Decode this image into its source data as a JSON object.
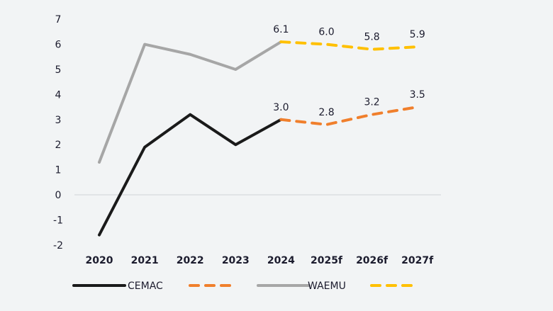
{
  "chart_data": {
    "type": "line",
    "title": "",
    "xlabel": "",
    "ylabel": "",
    "categories": [
      "2020",
      "2021",
      "2022",
      "2023",
      "2024",
      "2025f",
      "2026f",
      "2027f"
    ],
    "ylim": [
      -2,
      7
    ],
    "yticks": [
      "-2",
      "-1",
      "0",
      "1",
      "2",
      "3",
      "4",
      "5",
      "6",
      "7"
    ],
    "grid": false,
    "zero_line": true,
    "legend_position": "bottom",
    "forecast_from": "2024",
    "series": [
      {
        "name": "CEMAC",
        "values": [
          -1.6,
          1.9,
          3.2,
          2.0,
          3.0,
          2.8,
          3.2,
          3.5
        ],
        "color": "#1a1a1a",
        "forecast_color": "#f07f2c",
        "data_labels": [
          "",
          "",
          "",
          "",
          "3.0",
          "2.8",
          "3.2",
          "3.5"
        ]
      },
      {
        "name": "WAEMU",
        "values": [
          1.3,
          6.0,
          5.6,
          5.0,
          6.1,
          6.0,
          5.8,
          5.9
        ],
        "color": "#a6a6a6",
        "forecast_color": "#ffc000",
        "data_labels": [
          "",
          "",
          "",
          "",
          "6.1",
          "6.0",
          "5.8",
          "5.9"
        ]
      }
    ],
    "legend": [
      {
        "label": "CEMAC",
        "style": "solid",
        "color": "#1a1a1a"
      },
      {
        "label": "",
        "style": "dashed",
        "color": "#f07f2c"
      },
      {
        "label": "WAEMU",
        "style": "solid",
        "color": "#a6a6a6"
      },
      {
        "label": "",
        "style": "dashed",
        "color": "#ffc000"
      }
    ]
  }
}
